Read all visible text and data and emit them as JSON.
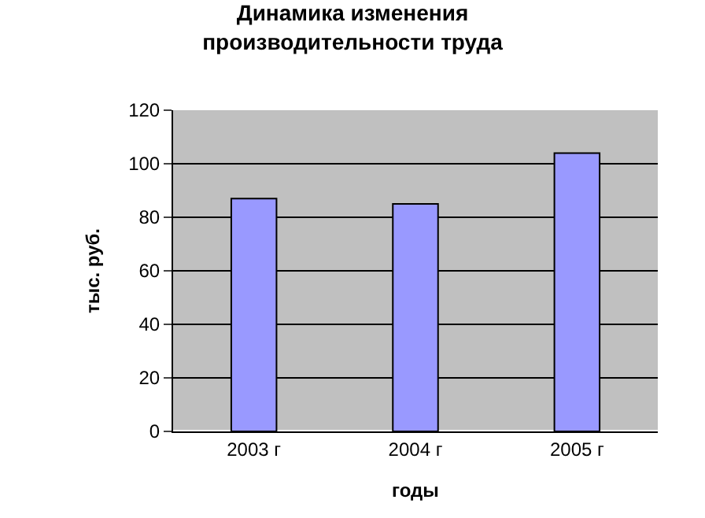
{
  "chart_data": {
    "type": "bar",
    "title": "Динамика изменения\nпроизводительности труда",
    "xlabel": "годы",
    "ylabel": "тыс. руб.",
    "categories": [
      "2003 г",
      "2004 г",
      "2005 г"
    ],
    "values": [
      87,
      85,
      104
    ],
    "color": "#9999ff",
    "ylim": [
      0,
      120
    ],
    "yticks": [
      0,
      20,
      40,
      60,
      80,
      100,
      120
    ],
    "grid": "y",
    "legend": false
  }
}
